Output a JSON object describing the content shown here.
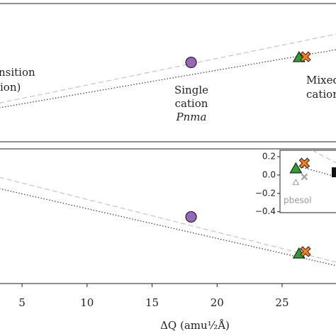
{
  "chart_data": [
    {
      "type": "scatter",
      "xlim": [
        3.25,
        29.2
      ],
      "ylim": [
        0,
        1
      ],
      "annotations": [
        "nsition",
        "ion)",
        "Single",
        "cation",
        "Pnma",
        "Mixed",
        "cations"
      ],
      "series": [
        {
          "line": "dashed",
          "color": "#c8c8c8",
          "x": [
            3.25,
            29.2
          ],
          "values": [
            0.28,
            0.78
          ]
        },
        {
          "line": "dotted",
          "color": "#444444",
          "x": [
            3.25,
            29.2
          ],
          "values": [
            0.246,
            0.667
          ]
        },
        {
          "marker": "circle",
          "color": "#9467bd",
          "x": [
            18
          ],
          "values": [
            0.574
          ]
        },
        {
          "marker": "triangle",
          "color": "#2ca02c",
          "x": [
            26.3
          ],
          "values": [
            0.61
          ]
        },
        {
          "marker": "cross",
          "color": "#ff7f0e",
          "x": [
            26.8
          ],
          "values": [
            0.615
          ]
        }
      ]
    },
    {
      "type": "scatter",
      "xlabel": "ΔQ (amu½Å)",
      "xlim": [
        3.25,
        29.2
      ],
      "ylim": [
        0,
        1
      ],
      "xticks": [
        5,
        10,
        15,
        20,
        25
      ],
      "series": [
        {
          "line": "dashed",
          "color": "#c8c8c8",
          "x": [
            3.25,
            29.2
          ],
          "values": [
            0.789,
            0.158
          ]
        },
        {
          "line": "dotted",
          "color": "#444444",
          "x": [
            3.25,
            29.2
          ],
          "values": [
            0.705,
            0.132
          ]
        },
        {
          "marker": "circle",
          "color": "#9467bd",
          "x": [
            18
          ],
          "values": [
            0.495
          ]
        },
        {
          "marker": "triangle",
          "color": "#2ca02c",
          "x": [
            26.3
          ],
          "values": [
            0.221
          ]
        },
        {
          "marker": "cross",
          "color": "#ff7f0e",
          "x": [
            26.8
          ],
          "values": [
            0.237
          ]
        }
      ]
    },
    {
      "type": "scatter",
      "xlim": [
        0,
        1
      ],
      "ylim": [
        -0.41,
        0.27
      ],
      "yticks": [
        0.2,
        {
          "value": 0.0,
          "label": "0.0"
        },
        {
          "value": -0.2,
          "label": "−0.2"
        },
        {
          "value": -0.4,
          "label": "−0.4"
        }
      ],
      "annotations": [
        "pbesol"
      ],
      "series": [
        {
          "line": "dashed",
          "color": "#c8c8c8",
          "x": [
            0.57,
            1
          ],
          "values": [
            0.27,
            0.13
          ]
        },
        {
          "line": "dotted",
          "color": "#444444",
          "x": [
            0.3,
            1
          ],
          "values": [
            0.1,
            -0.02
          ]
        },
        {
          "marker": "triangle",
          "color": "#2ca02c",
          "x": [
            0.28
          ],
          "values": [
            0.07
          ]
        },
        {
          "marker": "cross",
          "color": "#ff7f0e",
          "x": [
            0.43
          ],
          "values": [
            0.13
          ]
        },
        {
          "marker": "smallcross",
          "color": "#aaaaaa",
          "x": [
            0.43
          ],
          "values": [
            -0.02
          ]
        },
        {
          "marker": "smalltriangle",
          "color": "#999999",
          "x": [
            0.28
          ],
          "values": [
            -0.08
          ]
        },
        {
          "marker": "square",
          "color": "#111111",
          "x": [
            1.0
          ],
          "values": [
            0.03
          ]
        }
      ]
    }
  ]
}
